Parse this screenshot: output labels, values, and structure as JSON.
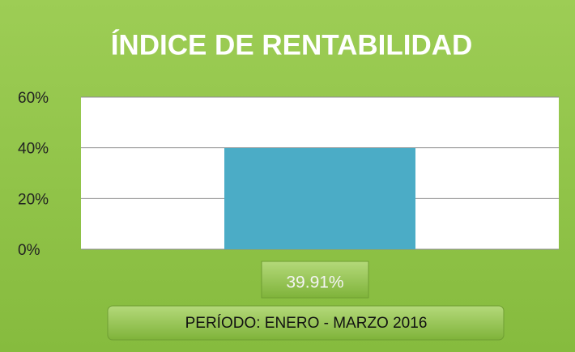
{
  "chart_data": {
    "type": "bar",
    "title": "ÍNDICE DE RENTABILIDAD",
    "categories": [
      null
    ],
    "values": [
      39.91
    ],
    "value_labels": [
      "39.91%"
    ],
    "color": "#4bacc6",
    "xlabel": "PERÍODO: ENERO - MARZO 2016",
    "ylim": [
      0,
      60
    ],
    "yticks": [
      {
        "value": 0,
        "label": "0%"
      },
      {
        "value": 20,
        "label": "20%"
      },
      {
        "value": 40,
        "label": "40%"
      },
      {
        "value": 60,
        "label": "60%"
      }
    ],
    "grid": true
  }
}
